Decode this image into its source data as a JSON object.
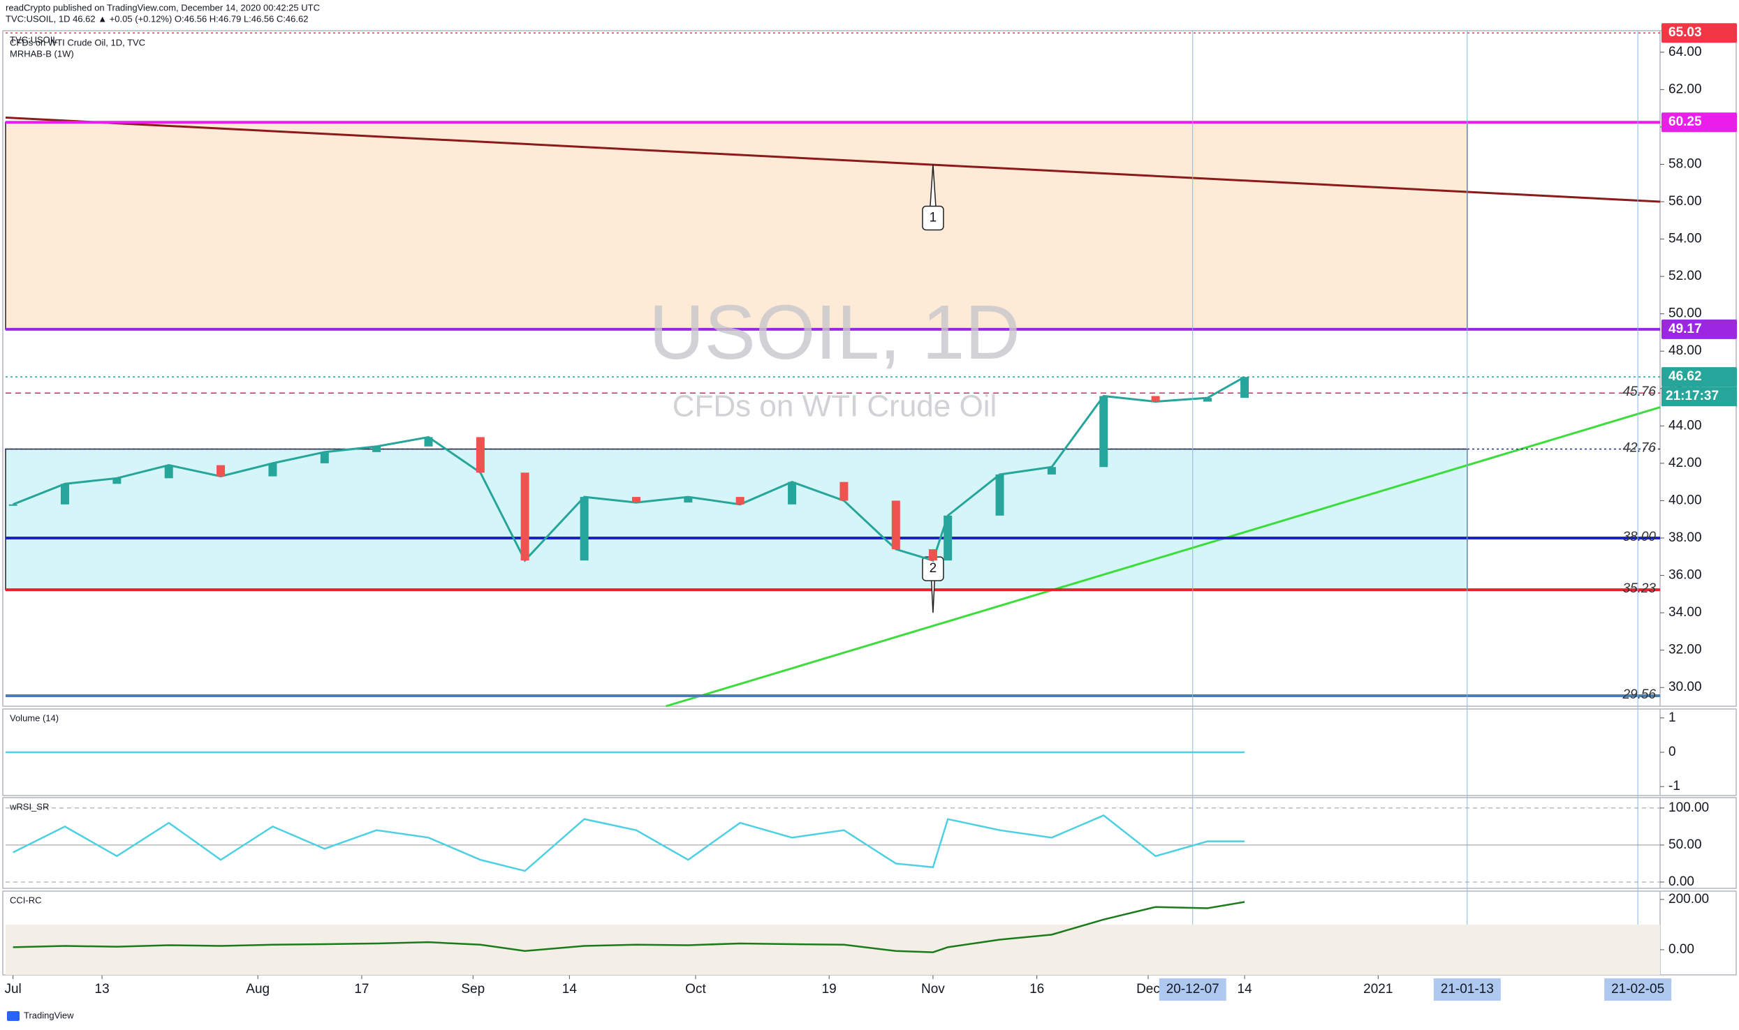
{
  "header": {
    "publisher": "readCrypto published on TradingView.com, December 14, 2020 00:42:25 UTC",
    "symbol_line": "TVC:USOIL, 1D 46.62 ▲ +0.05 (+0.12%) O:46.56 H:46.79 L:46.56 C:46.62",
    "source": "CFDs on WTI Crude Oil, 1D, TVC",
    "indicator": "MRHAB-B (1W)",
    "watermark": "USOIL, 1D",
    "watermark_sub": "CFDs on WTI Crude Oil",
    "footer": "TradingView"
  },
  "chart_data": [
    {
      "type": "line",
      "name": "price",
      "x": [
        "2020-07-01",
        "2020-07-08",
        "2020-07-15",
        "2020-07-22",
        "2020-07-29",
        "2020-08-05",
        "2020-08-12",
        "2020-08-19",
        "2020-08-26",
        "2020-09-02",
        "2020-09-08",
        "2020-09-16",
        "2020-09-23",
        "2020-09-30",
        "2020-10-07",
        "2020-10-14",
        "2020-10-21",
        "2020-10-28",
        "2020-11-02",
        "2020-11-04",
        "2020-11-11",
        "2020-11-18",
        "2020-11-25",
        "2020-12-02",
        "2020-12-09",
        "2020-12-14"
      ],
      "series": [
        {
          "name": "TVC:USOIL",
          "color": "#26a69a",
          "values": [
            39.8,
            40.9,
            41.2,
            41.9,
            41.3,
            42.0,
            42.6,
            42.9,
            43.4,
            41.5,
            36.8,
            40.2,
            39.9,
            40.2,
            39.8,
            41.0,
            40.0,
            37.4,
            36.8,
            39.2,
            41.4,
            41.8,
            45.6,
            45.3,
            45.5,
            46.62
          ]
        }
      ],
      "xlim": [
        "2020-06-30",
        "2021-02-08"
      ],
      "ylim": [
        29,
        65.15
      ],
      "yticks": [
        {
          "value": 30,
          "label": "30.00"
        },
        {
          "value": 32,
          "label": "32.00"
        },
        {
          "value": 34,
          "label": "34.00"
        },
        {
          "value": 36,
          "label": "36.00"
        },
        {
          "value": 38,
          "label": "38.00"
        },
        {
          "value": 40,
          "label": "40.00"
        },
        {
          "value": 42,
          "label": "42.00"
        },
        {
          "value": 44,
          "label": "44.00"
        },
        {
          "value": 46,
          "label": "46.00"
        },
        {
          "value": 48,
          "label": "48.00"
        },
        {
          "value": 50,
          "label": "50.00"
        },
        {
          "value": 52,
          "label": "52.00"
        },
        {
          "value": 54,
          "label": "54.00"
        },
        {
          "value": 56,
          "label": "56.00"
        },
        {
          "value": 58,
          "label": "58.00"
        },
        {
          "value": 60,
          "label": "60.00"
        },
        {
          "value": 62,
          "label": "62.00"
        },
        {
          "value": 64,
          "label": "64.00"
        }
      ],
      "xticks": [
        {
          "value": "2020-07-01",
          "label": "Jul"
        },
        {
          "value": "2020-07-13",
          "label": "13"
        },
        {
          "value": "2020-08-03",
          "label": "Aug"
        },
        {
          "value": "2020-08-17",
          "label": "17"
        },
        {
          "value": "2020-09-01",
          "label": "Sep"
        },
        {
          "value": "2020-09-14",
          "label": "14"
        },
        {
          "value": "2020-10-01",
          "label": "Oct"
        },
        {
          "value": "2020-10-19",
          "label": "19"
        },
        {
          "value": "2020-11-02",
          "label": "Nov"
        },
        {
          "value": "2020-11-16",
          "label": "16"
        },
        {
          "value": "2020-12-01",
          "label": "Dec"
        },
        {
          "value": "2020-12-14",
          "label": "14"
        },
        {
          "value": "2021-01-01",
          "label": "2021"
        }
      ],
      "highlight_dates": [
        {
          "value": "2020-12-07",
          "label": "20-12-07"
        },
        {
          "value": "2021-01-13",
          "label": "21-01-13"
        },
        {
          "value": "2021-02-05",
          "label": "21-02-05"
        }
      ],
      "levels": [
        {
          "value": 65.03,
          "label": "65.03",
          "color": "#f23645",
          "style": "dotted",
          "badge": true
        },
        {
          "value": 60.25,
          "label": "60.25",
          "color": "#e91ee9",
          "style": "solid",
          "badge": true
        },
        {
          "value": 49.17,
          "label": "49.17",
          "color": "#9c27e0",
          "style": "solid",
          "badge": true
        },
        {
          "value": 46.62,
          "label": "46.62",
          "color": "#26a69a",
          "style": "dotted",
          "badge": true
        },
        {
          "value": 45.76,
          "label": "45.76",
          "color": "#e91e63",
          "style": "dashed",
          "badge": false
        },
        {
          "value": 42.76,
          "label": "42.76",
          "color": "#1e2a78",
          "style": "dotted",
          "badge": false
        },
        {
          "value": 38.0,
          "label": "38.00",
          "color": "#1a23c8",
          "style": "solid",
          "badge": false
        },
        {
          "value": 35.23,
          "label": "35.23",
          "color": "#e3242b",
          "style": "solid",
          "badge": false
        },
        {
          "value": 29.56,
          "label": "29.56",
          "color": "#4a7fb0",
          "style": "solid",
          "badge": false
        }
      ],
      "countdown": "21:17:37",
      "zones": [
        {
          "from": 49.17,
          "to": 60.25,
          "end": "2021-01-13",
          "color": "#fdebd8"
        },
        {
          "from": 35.23,
          "to": 42.76,
          "end": "2021-01-13",
          "color": "#d6f5f8"
        }
      ],
      "trendlines": [
        {
          "x": [
            "2020-06-30",
            "2021-02-08"
          ],
          "y": [
            60.5,
            56.0
          ],
          "color": "#8b1a1a"
        },
        {
          "x": [
            "2020-09-27",
            "2021-02-08"
          ],
          "y": [
            29,
            45
          ],
          "color": "#3ddc3d"
        }
      ],
      "callouts": [
        {
          "label": "1",
          "x": "2020-11-02",
          "y": 58
        },
        {
          "label": "2",
          "x": "2020-11-02",
          "y": 34
        }
      ]
    },
    {
      "type": "line",
      "name": "Volume (14)",
      "series": [
        {
          "name": "Volume (14)",
          "color": "#4dd0e1",
          "values": [
            0,
            0
          ]
        }
      ],
      "x": [
        "2020-06-30",
        "2020-12-14"
      ],
      "xlim": [
        "2020-06-30",
        "2021-02-08"
      ],
      "ylim": [
        -1.26,
        1.26
      ],
      "yticks": [
        {
          "value": 1,
          "label": "1"
        },
        {
          "value": 0,
          "label": "0"
        },
        {
          "value": -1,
          "label": "-1"
        }
      ]
    },
    {
      "type": "line",
      "name": "wRSI_SR",
      "series": [
        {
          "name": "wRSI_SR",
          "color": "#4dd0e1",
          "values": [
            40,
            75,
            35,
            80,
            30,
            75,
            45,
            70,
            60,
            30,
            15,
            85,
            70,
            30,
            80,
            60,
            70,
            25,
            20,
            85,
            70,
            60,
            90,
            35,
            55,
            55
          ]
        }
      ],
      "x": [
        "2020-07-01",
        "2020-07-08",
        "2020-07-15",
        "2020-07-22",
        "2020-07-29",
        "2020-08-05",
        "2020-08-12",
        "2020-08-19",
        "2020-08-26",
        "2020-09-02",
        "2020-09-08",
        "2020-09-16",
        "2020-09-23",
        "2020-09-30",
        "2020-10-07",
        "2020-10-14",
        "2020-10-21",
        "2020-10-28",
        "2020-11-02",
        "2020-11-04",
        "2020-11-11",
        "2020-11-18",
        "2020-11-25",
        "2020-12-02",
        "2020-12-09",
        "2020-12-14"
      ],
      "xlim": [
        "2020-06-30",
        "2021-02-08"
      ],
      "ylim": [
        -8.5,
        114
      ],
      "yticks": [
        {
          "value": 100,
          "label": "100.00"
        },
        {
          "value": 50,
          "label": "50.00"
        },
        {
          "value": 0,
          "label": "0.00"
        }
      ]
    },
    {
      "type": "line",
      "name": "CCI-RC",
      "series": [
        {
          "name": "CCI-RC",
          "color": "#1b7a1b",
          "values": [
            10,
            15,
            12,
            18,
            15,
            20,
            22,
            25,
            30,
            20,
            -5,
            15,
            20,
            18,
            25,
            22,
            20,
            -5,
            -10,
            10,
            40,
            60,
            120,
            170,
            165,
            190
          ]
        }
      ],
      "x": [
        "2020-07-01",
        "2020-07-08",
        "2020-07-15",
        "2020-07-22",
        "2020-07-29",
        "2020-08-05",
        "2020-08-12",
        "2020-08-19",
        "2020-08-26",
        "2020-09-02",
        "2020-09-08",
        "2020-09-16",
        "2020-09-23",
        "2020-09-30",
        "2020-10-07",
        "2020-10-14",
        "2020-10-21",
        "2020-10-28",
        "2020-11-02",
        "2020-11-04",
        "2020-11-11",
        "2020-11-18",
        "2020-11-25",
        "2020-12-02",
        "2020-12-09",
        "2020-12-14"
      ],
      "xlim": [
        "2020-06-30",
        "2021-02-08"
      ],
      "ylim": [
        -100,
        233
      ],
      "yticks": [
        {
          "value": 200,
          "label": "200.00"
        },
        {
          "value": 0,
          "label": "0.00"
        }
      ]
    }
  ]
}
